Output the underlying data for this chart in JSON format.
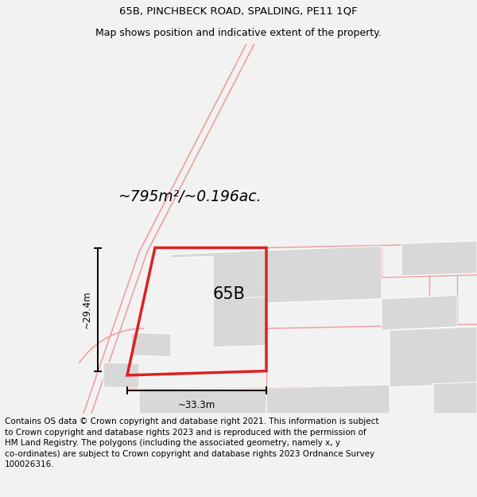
{
  "title_line1": "65B, PINCHBECK ROAD, SPALDING, PE11 1QF",
  "title_line2": "Map shows position and indicative extent of the property.",
  "area_text": "~795m²/~0.196ac.",
  "label_65B": "65B",
  "dim_height": "~29.4m",
  "dim_width": "~33.3m",
  "footer_text": "Contains OS data © Crown copyright and database right 2021. This information is subject\nto Crown copyright and database rights 2023 and is reproduced with the permission of\nHM Land Registry. The polygons (including the associated geometry, namely x, y\nco-ordinates) are subject to Crown copyright and database rights 2023 Ordnance Survey\n100026316.",
  "bg_color": "#f2f2f2",
  "map_bg": "#ffffff",
  "red_color": "#dd2020",
  "pink_color": "#f0a0a0",
  "gray_fill": "#d8d8d8",
  "title_fontsize": 9.5,
  "footer_fontsize": 7.5,
  "area_fontsize": 13.5,
  "label_fontsize": 15
}
